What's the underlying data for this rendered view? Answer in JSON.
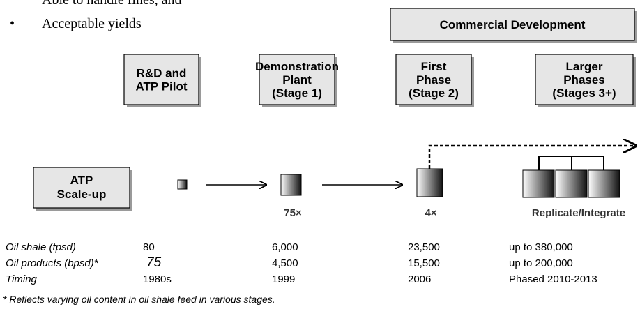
{
  "bullets": [
    "Able to handle fines, and",
    "Acceptable yields"
  ],
  "header": "Commercial Development",
  "stages": [
    {
      "lines": [
        "R&D and",
        "ATP Pilot"
      ]
    },
    {
      "lines": [
        "Demonstration",
        "Plant",
        "(Stage 1)"
      ]
    },
    {
      "lines": [
        "First",
        "Phase",
        "(Stage 2)"
      ]
    },
    {
      "lines": [
        "Larger",
        "Phases",
        "(Stages 3+)"
      ]
    }
  ],
  "scaleup": {
    "lines": [
      "ATP",
      "Scale-up"
    ]
  },
  "factors": [
    "75×",
    "4×",
    "Replicate/Integrate"
  ],
  "table": {
    "rows": [
      {
        "label": "Oil shale (tpsd)",
        "values": [
          "80",
          "6,000",
          "23,500",
          "up to 380,000"
        ]
      },
      {
        "label": "Oil products (bpsd)*",
        "values": [
          "75",
          "4,500",
          "15,500",
          "up to 200,000"
        ]
      },
      {
        "label": "Timing",
        "values": [
          "1980s",
          "1999",
          "2006",
          "Phased 2010-2013"
        ]
      }
    ]
  },
  "footnote": "* Reflects varying oil content in oil shale feed in various stages."
}
